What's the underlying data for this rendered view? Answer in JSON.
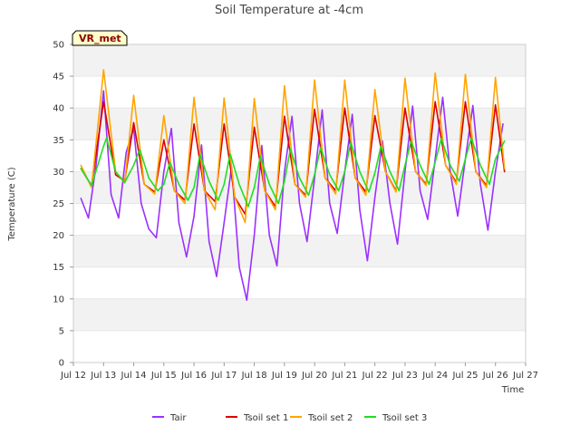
{
  "chart_data": {
    "type": "line",
    "title": "Soil Temperature at -4cm",
    "xlabel": "Time",
    "ylabel": "Temperature (C)",
    "badge": "VR_met",
    "ylim": [
      0,
      50
    ],
    "xlim": [
      12,
      27
    ],
    "yticks": [
      0,
      5,
      10,
      15,
      20,
      25,
      30,
      35,
      40,
      45,
      50
    ],
    "xticks": [
      {
        "value": 12,
        "label": "Jul 12"
      },
      {
        "value": 13,
        "label": "Jul 13"
      },
      {
        "value": 14,
        "label": "Jul 14"
      },
      {
        "value": 15,
        "label": "Jul 15"
      },
      {
        "value": 16,
        "label": "Jul 16"
      },
      {
        "value": 17,
        "label": "Jul 17"
      },
      {
        "value": 18,
        "label": "Jul 18"
      },
      {
        "value": 19,
        "label": "Jul 19"
      },
      {
        "value": 20,
        "label": "Jul 20"
      },
      {
        "value": 21,
        "label": "Jul 21"
      },
      {
        "value": 22,
        "label": "Jul 22"
      },
      {
        "value": 23,
        "label": "Jul 23"
      },
      {
        "value": 24,
        "label": "Jul 24"
      },
      {
        "value": 25,
        "label": "Jul 25"
      },
      {
        "value": 26,
        "label": "Jul 26"
      },
      {
        "value": 27,
        "label": "Jul 27"
      }
    ],
    "grid": true,
    "legend_position": "bottom",
    "series": [
      {
        "name": "Tair",
        "color": "#9b30ff",
        "x": [
          12.25,
          12.5,
          12.75,
          13.0,
          13.25,
          13.5,
          13.75,
          14.0,
          14.25,
          14.5,
          14.75,
          15.0,
          15.25,
          15.5,
          15.75,
          16.0,
          16.25,
          16.5,
          16.75,
          17.0,
          17.25,
          17.5,
          17.75,
          18.0,
          18.25,
          18.5,
          18.75,
          19.0,
          19.25,
          19.5,
          19.75,
          20.0,
          20.25,
          20.5,
          20.75,
          21.0,
          21.25,
          21.5,
          21.75,
          22.0,
          22.25,
          22.5,
          22.75,
          23.0,
          23.25,
          23.5,
          23.75,
          24.0,
          24.25,
          24.5,
          24.75,
          25.0,
          25.25,
          25.5,
          25.75,
          26.0,
          26.25
        ],
        "y": [
          25.8,
          22.7,
          31.0,
          42.7,
          26.4,
          22.7,
          33.0,
          36.8,
          25.0,
          21.0,
          19.6,
          30.0,
          36.8,
          22.0,
          16.6,
          23.0,
          34.2,
          19.0,
          13.5,
          22.0,
          30.8,
          15.0,
          9.8,
          20.0,
          34.1,
          20.0,
          15.2,
          30.0,
          38.7,
          25.0,
          19.0,
          29.0,
          39.7,
          25.0,
          20.3,
          30.0,
          39.0,
          24.0,
          16.0,
          26.0,
          34.8,
          25.0,
          18.6,
          30.0,
          40.3,
          27.0,
          22.5,
          32.0,
          41.7,
          30.0,
          23.0,
          32.0,
          40.4,
          28.0,
          20.8,
          30.0,
          37.5
        ]
      },
      {
        "name": "Tsoil set 1",
        "color": "#dd0000",
        "x": [
          12.25,
          12.6,
          13.0,
          13.4,
          13.7,
          14.0,
          14.35,
          14.7,
          15.0,
          15.35,
          15.7,
          16.0,
          16.35,
          16.7,
          17.0,
          17.35,
          17.7,
          18.0,
          18.35,
          18.7,
          19.0,
          19.35,
          19.7,
          20.0,
          20.35,
          20.7,
          21.0,
          21.35,
          21.7,
          22.0,
          22.35,
          22.7,
          23.0,
          23.35,
          23.7,
          24.0,
          24.35,
          24.7,
          25.0,
          25.35,
          25.7,
          26.0,
          26.3
        ],
        "y": [
          30.5,
          27.8,
          41.0,
          29.5,
          28.5,
          37.7,
          28.0,
          26.8,
          35.0,
          27.0,
          25.5,
          37.5,
          27.0,
          25.3,
          37.5,
          26.0,
          23.3,
          37.0,
          27.0,
          24.5,
          38.7,
          28.0,
          26.3,
          39.8,
          29.0,
          27.0,
          40.0,
          29.0,
          26.8,
          38.8,
          30.0,
          27.0,
          40.0,
          30.0,
          28.0,
          41.0,
          31.0,
          28.3,
          41.0,
          30.0,
          27.8,
          40.5,
          30.0
        ]
      },
      {
        "name": "Tsoil set 2",
        "color": "#ffa500",
        "x": [
          12.25,
          12.6,
          13.0,
          13.4,
          13.7,
          14.0,
          14.35,
          14.7,
          15.0,
          15.35,
          15.7,
          16.0,
          16.35,
          16.7,
          17.0,
          17.35,
          17.7,
          18.0,
          18.35,
          18.7,
          19.0,
          19.35,
          19.7,
          20.0,
          20.35,
          20.7,
          21.0,
          21.35,
          21.7,
          22.0,
          22.35,
          22.7,
          23.0,
          23.35,
          23.7,
          24.0,
          24.35,
          24.7,
          25.0,
          25.35,
          25.7,
          26.0,
          26.3
        ],
        "y": [
          31.0,
          27.5,
          46.0,
          30.0,
          28.2,
          42.0,
          28.0,
          26.5,
          38.8,
          27.0,
          25.0,
          41.7,
          27.0,
          24.0,
          41.6,
          26.0,
          22.0,
          41.5,
          27.0,
          24.0,
          43.5,
          28.0,
          26.0,
          44.4,
          29.0,
          26.5,
          44.4,
          29.0,
          26.3,
          42.9,
          30.0,
          26.8,
          44.7,
          30.0,
          27.8,
          45.5,
          31.0,
          28.0,
          45.3,
          30.0,
          27.5,
          44.8,
          30.5
        ]
      },
      {
        "name": "Tsoil set 3",
        "color": "#22dd22",
        "x": [
          12.25,
          12.6,
          13.0,
          13.1,
          13.4,
          13.7,
          14.0,
          14.2,
          14.5,
          14.8,
          15.0,
          15.2,
          15.5,
          15.8,
          16.0,
          16.2,
          16.5,
          16.8,
          17.0,
          17.2,
          17.5,
          17.8,
          18.0,
          18.2,
          18.5,
          18.8,
          19.0,
          19.2,
          19.5,
          19.8,
          20.0,
          20.2,
          20.5,
          20.8,
          21.0,
          21.2,
          21.5,
          21.8,
          22.0,
          22.2,
          22.5,
          22.8,
          23.0,
          23.2,
          23.5,
          23.8,
          24.0,
          24.2,
          24.5,
          24.8,
          25.0,
          25.2,
          25.5,
          25.8,
          26.0,
          26.3
        ],
        "y": [
          30.5,
          27.8,
          34.0,
          35.3,
          30.0,
          28.3,
          31.0,
          33.5,
          29.0,
          27.0,
          28.0,
          31.5,
          28.0,
          25.5,
          27.5,
          32.7,
          28.5,
          25.5,
          28.0,
          32.8,
          28.0,
          24.5,
          27.5,
          32.4,
          28.0,
          25.0,
          28.5,
          33.6,
          29.0,
          26.3,
          29.5,
          33.8,
          29.5,
          27.0,
          30.0,
          34.6,
          30.0,
          26.8,
          29.8,
          34.0,
          30.0,
          27.0,
          31.0,
          34.8,
          31.0,
          28.0,
          31.5,
          35.2,
          31.0,
          28.5,
          32.0,
          35.3,
          31.0,
          28.0,
          32.0,
          34.8
        ]
      }
    ]
  }
}
